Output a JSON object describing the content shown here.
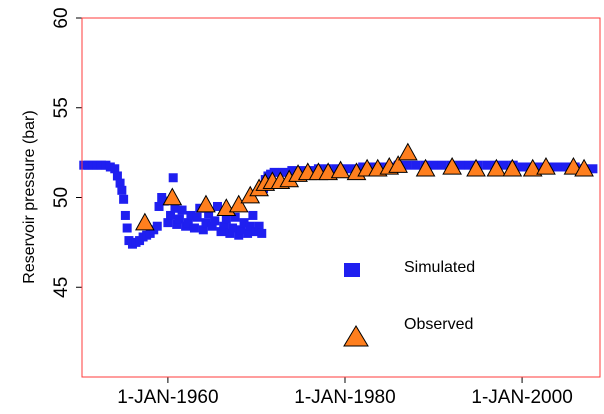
{
  "chart_data": {
    "type": "scatter",
    "y_label": "Reservoir pressure (bar)",
    "xlim": [
      1950.3,
      2008.8
    ],
    "xticks": [
      {
        "value": 1960,
        "label": "1-JAN-1960"
      },
      {
        "value": 1980,
        "label": "1-JAN-1980"
      },
      {
        "value": 2000,
        "label": "1-JAN-2000"
      }
    ],
    "ylim": [
      40,
      60
    ],
    "yticks": [
      45,
      50,
      55,
      60
    ],
    "frame_color": "#ff3b3b",
    "series": [
      {
        "name": "Simulated",
        "color": "#1f1ff0",
        "marker": "square",
        "x": [
          1950.5,
          1951,
          1951.5,
          1952,
          1952.5,
          1953,
          1953.5,
          1954,
          1954.3,
          1954.6,
          1954.8,
          1955,
          1955.2,
          1955.4,
          1955.6,
          1956,
          1956.4,
          1956.8,
          1957.2,
          1957.6,
          1958,
          1958.4,
          1958.8,
          1959,
          1959.3,
          1959.6,
          1960,
          1960.3,
          1960.6,
          1960.8,
          1961,
          1961.3,
          1961.6,
          1962,
          1962.3,
          1962.6,
          1963,
          1963.3,
          1963.6,
          1964,
          1964.3,
          1964.6,
          1965,
          1965.3,
          1965.6,
          1966,
          1966.3,
          1966.6,
          1967,
          1967.3,
          1967.6,
          1968,
          1968.3,
          1968.6,
          1969,
          1969.3,
          1969.6,
          1970,
          1970.3,
          1970.6,
          1970.8,
          1971,
          1971.3,
          1971.6,
          1972,
          1973,
          1974,
          1975,
          1976,
          1977,
          1978,
          1979,
          1980,
          1981,
          1982,
          1983,
          1984,
          1985,
          1986,
          1987,
          1988,
          1989,
          1990,
          1991,
          1992,
          1993,
          1994,
          1995,
          1996,
          1997,
          1998,
          1999,
          2000,
          2001,
          2002,
          2003,
          2004,
          2005,
          2006,
          2007,
          2008
        ],
        "values": [
          51.8,
          51.8,
          51.8,
          51.8,
          51.8,
          51.8,
          51.7,
          51.6,
          51.2,
          50.8,
          50.4,
          49.9,
          49.0,
          48.3,
          47.6,
          47.4,
          47.5,
          47.6,
          47.8,
          47.9,
          48.0,
          48.2,
          48.4,
          49.5,
          50.0,
          49.8,
          48.6,
          49.0,
          51.1,
          49.4,
          48.5,
          48.8,
          49.3,
          48.4,
          48.6,
          49.0,
          48.3,
          48.9,
          49.4,
          48.2,
          48.6,
          49.1,
          48.4,
          48.7,
          49.5,
          48.1,
          48.4,
          48.8,
          48.0,
          48.3,
          48.9,
          47.9,
          48.2,
          48.6,
          48.0,
          48.4,
          49.0,
          48.1,
          48.4,
          48.0,
          50.5,
          51.0,
          51.2,
          51.3,
          51.4,
          51.4,
          51.5,
          51.5,
          51.5,
          51.6,
          51.6,
          51.6,
          51.6,
          51.6,
          51.7,
          51.7,
          51.7,
          51.7,
          51.8,
          51.8,
          51.8,
          51.8,
          51.8,
          51.8,
          51.8,
          51.8,
          51.8,
          51.8,
          51.8,
          51.8,
          51.8,
          51.8,
          51.7,
          51.7,
          51.7,
          51.7,
          51.7,
          51.7,
          51.7,
          51.6,
          51.6
        ]
      },
      {
        "name": "Observed",
        "color": "#ff7f1e",
        "marker": "triangle",
        "x": [
          1957.4,
          1960.5,
          1964.3,
          1966.6,
          1968.0,
          1969.3,
          1970.3,
          1971.0,
          1971.8,
          1972.7,
          1973.7,
          1974.7,
          1975.8,
          1977.0,
          1978.1,
          1979.5,
          1981.3,
          1982.5,
          1983.7,
          1985.0,
          1986.0,
          1987.1,
          1989.1,
          1992.1,
          1994.8,
          1997.1,
          1998.9,
          2001.2,
          2002.7,
          2005.8,
          2007.0
        ],
        "values": [
          48.6,
          50.0,
          49.6,
          49.4,
          49.6,
          50.1,
          50.5,
          50.8,
          50.9,
          50.9,
          51.0,
          51.3,
          51.4,
          51.4,
          51.4,
          51.5,
          51.4,
          51.6,
          51.6,
          51.7,
          51.8,
          52.5,
          51.6,
          51.7,
          51.6,
          51.6,
          51.6,
          51.6,
          51.7,
          51.7,
          51.6
        ]
      }
    ]
  }
}
